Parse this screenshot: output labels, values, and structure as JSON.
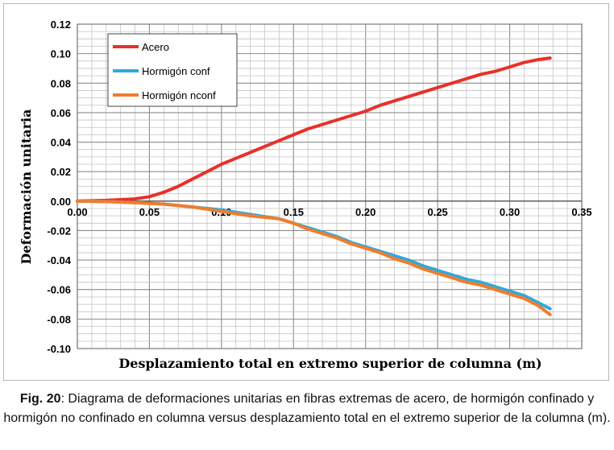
{
  "chart_data": {
    "type": "line",
    "xlabel": "Desplazamiento total en extremo superior de columna (m)",
    "ylabel": "Deformación unitaria",
    "xlim": [
      0,
      0.35
    ],
    "ylim": [
      -0.1,
      0.12
    ],
    "xticks": [
      "0.00",
      "0.05",
      "0.10",
      "0.15",
      "0.20",
      "0.25",
      "0.30",
      "0.35"
    ],
    "yticks": [
      "0.12",
      "0.10",
      "0.08",
      "0.06",
      "0.04",
      "0.02",
      "0.00",
      "-0.02",
      "-0.04",
      "-0.06",
      "-0.08",
      "-0.10"
    ],
    "grid": true,
    "legend_position": "top-left",
    "series": [
      {
        "name": "Acero",
        "color": "#e8312a",
        "points": [
          [
            0,
            0
          ],
          [
            0.02,
            0.0005
          ],
          [
            0.04,
            0.0015
          ],
          [
            0.05,
            0.003
          ],
          [
            0.06,
            0.006
          ],
          [
            0.07,
            0.01
          ],
          [
            0.08,
            0.015
          ],
          [
            0.09,
            0.02
          ],
          [
            0.1,
            0.025
          ],
          [
            0.11,
            0.029
          ],
          [
            0.12,
            0.033
          ],
          [
            0.13,
            0.037
          ],
          [
            0.14,
            0.041
          ],
          [
            0.15,
            0.045
          ],
          [
            0.16,
            0.049
          ],
          [
            0.17,
            0.052
          ],
          [
            0.18,
            0.055
          ],
          [
            0.19,
            0.058
          ],
          [
            0.2,
            0.061
          ],
          [
            0.21,
            0.065
          ],
          [
            0.22,
            0.068
          ],
          [
            0.23,
            0.071
          ],
          [
            0.24,
            0.074
          ],
          [
            0.25,
            0.077
          ],
          [
            0.26,
            0.08
          ],
          [
            0.27,
            0.083
          ],
          [
            0.28,
            0.086
          ],
          [
            0.29,
            0.088
          ],
          [
            0.3,
            0.091
          ],
          [
            0.31,
            0.094
          ],
          [
            0.32,
            0.096
          ],
          [
            0.328,
            0.097
          ]
        ]
      },
      {
        "name": "Hormigón conf",
        "color": "#2eaadc",
        "points": [
          [
            0,
            0
          ],
          [
            0.02,
            -0.0003
          ],
          [
            0.04,
            -0.001
          ],
          [
            0.06,
            -0.002
          ],
          [
            0.08,
            -0.004
          ],
          [
            0.1,
            -0.006
          ],
          [
            0.12,
            -0.009
          ],
          [
            0.14,
            -0.012
          ],
          [
            0.15,
            -0.015
          ],
          [
            0.16,
            -0.018
          ],
          [
            0.17,
            -0.021
          ],
          [
            0.18,
            -0.024
          ],
          [
            0.19,
            -0.028
          ],
          [
            0.2,
            -0.031
          ],
          [
            0.21,
            -0.034
          ],
          [
            0.22,
            -0.037
          ],
          [
            0.23,
            -0.04
          ],
          [
            0.24,
            -0.044
          ],
          [
            0.25,
            -0.047
          ],
          [
            0.26,
            -0.05
          ],
          [
            0.27,
            -0.053
          ],
          [
            0.28,
            -0.055
          ],
          [
            0.29,
            -0.058
          ],
          [
            0.3,
            -0.061
          ],
          [
            0.31,
            -0.064
          ],
          [
            0.32,
            -0.069
          ],
          [
            0.328,
            -0.073
          ]
        ]
      },
      {
        "name": "Hormigón nconf",
        "color": "#ef7d2e",
        "points": [
          [
            0,
            0
          ],
          [
            0.02,
            -0.0003
          ],
          [
            0.04,
            -0.001
          ],
          [
            0.06,
            -0.002
          ],
          [
            0.08,
            -0.004
          ],
          [
            0.1,
            -0.007
          ],
          [
            0.12,
            -0.01
          ],
          [
            0.14,
            -0.012
          ],
          [
            0.15,
            -0.015
          ],
          [
            0.16,
            -0.019
          ],
          [
            0.17,
            -0.022
          ],
          [
            0.18,
            -0.025
          ],
          [
            0.19,
            -0.029
          ],
          [
            0.2,
            -0.032
          ],
          [
            0.21,
            -0.035
          ],
          [
            0.22,
            -0.039
          ],
          [
            0.23,
            -0.042
          ],
          [
            0.24,
            -0.046
          ],
          [
            0.25,
            -0.049
          ],
          [
            0.26,
            -0.052
          ],
          [
            0.27,
            -0.055
          ],
          [
            0.28,
            -0.057
          ],
          [
            0.29,
            -0.06
          ],
          [
            0.3,
            -0.063
          ],
          [
            0.31,
            -0.066
          ],
          [
            0.32,
            -0.071
          ],
          [
            0.328,
            -0.077
          ]
        ]
      }
    ]
  },
  "caption": {
    "label": "Fig. 20",
    "text": ": Diagrama de deformaciones unitarias en fibras extremas de acero, de hormigón confinado y hormigón no confinado en columna versus desplazamiento total en el extremo superior de la columna (m)."
  }
}
